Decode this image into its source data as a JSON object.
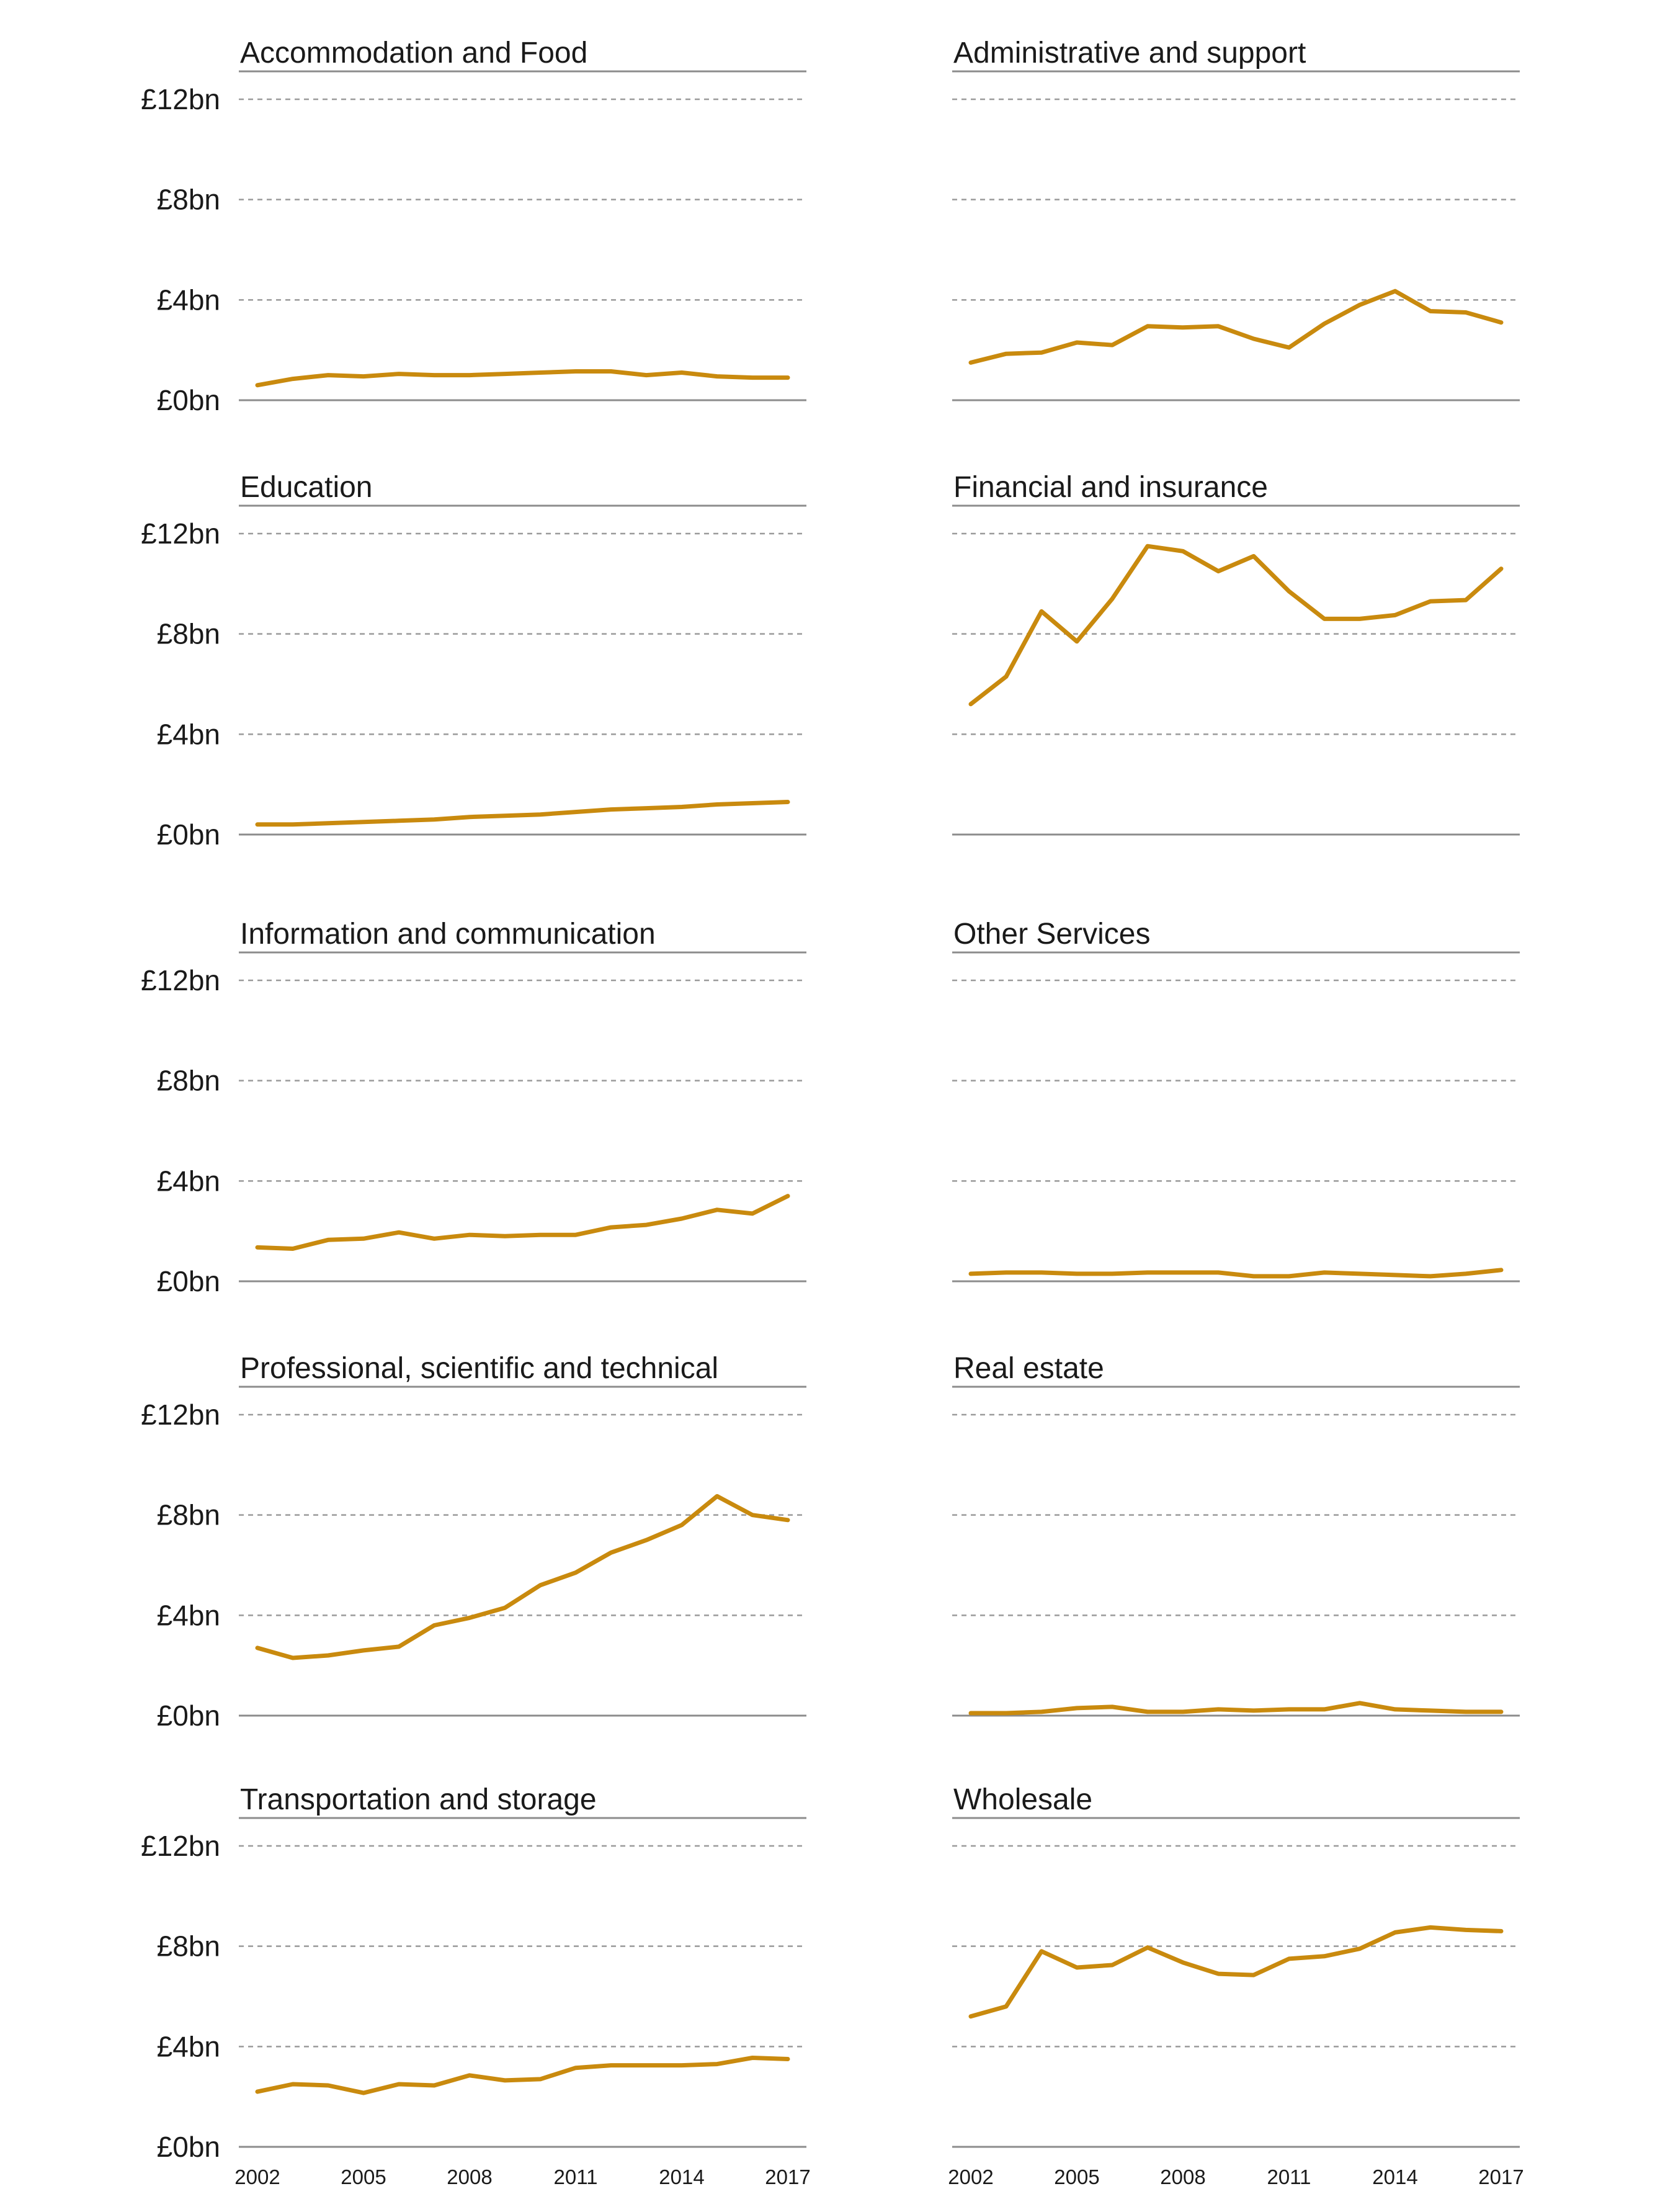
{
  "chart_data": {
    "type": "line",
    "line_color": "#c98a0e",
    "y_ticks": [
      "£0bn",
      "£4bn",
      "£8bn",
      "£12bn"
    ],
    "y_tick_values": [
      0,
      4,
      8,
      12
    ],
    "ylim": [
      0,
      12
    ],
    "x": [
      2002,
      2003,
      2004,
      2005,
      2006,
      2007,
      2008,
      2009,
      2010,
      2011,
      2012,
      2013,
      2014,
      2015,
      2016,
      2017
    ],
    "x_ticks": [
      "2002",
      "2005",
      "2008",
      "2011",
      "2014",
      "2017"
    ],
    "x_tick_values": [
      2002,
      2005,
      2008,
      2011,
      2014,
      2017
    ],
    "grid": true,
    "panels": [
      {
        "title": "Accommodation and Food",
        "values": [
          0.6,
          0.85,
          1.0,
          0.95,
          1.05,
          1.0,
          1.0,
          1.05,
          1.1,
          1.15,
          1.15,
          1.0,
          1.1,
          0.95,
          0.9,
          0.9
        ]
      },
      {
        "title": "Administrative and support",
        "values": [
          1.5,
          1.85,
          1.9,
          2.3,
          2.2,
          2.95,
          2.9,
          2.95,
          2.45,
          2.1,
          3.05,
          3.8,
          4.35,
          3.55,
          3.5,
          3.1
        ]
      },
      {
        "title": "Education",
        "values": [
          0.4,
          0.4,
          0.45,
          0.5,
          0.55,
          0.6,
          0.7,
          0.75,
          0.8,
          0.9,
          1.0,
          1.05,
          1.1,
          1.2,
          1.25,
          1.3
        ]
      },
      {
        "title": "Financial and insurance",
        "values": [
          5.2,
          6.3,
          8.9,
          7.7,
          9.4,
          11.5,
          11.3,
          10.5,
          11.1,
          9.7,
          8.6,
          8.6,
          8.75,
          9.3,
          9.35,
          10.6
        ]
      },
      {
        "title": "Information and communication",
        "values": [
          1.35,
          1.3,
          1.65,
          1.7,
          1.95,
          1.7,
          1.85,
          1.8,
          1.85,
          1.85,
          2.15,
          2.25,
          2.5,
          2.85,
          2.7,
          3.4
        ]
      },
      {
        "title": "Other Services",
        "values": [
          0.3,
          0.35,
          0.35,
          0.3,
          0.3,
          0.35,
          0.35,
          0.35,
          0.2,
          0.2,
          0.35,
          0.3,
          0.25,
          0.2,
          0.3,
          0.45
        ]
      },
      {
        "title": "Professional, scientific and technical",
        "values": [
          2.7,
          2.3,
          2.4,
          2.6,
          2.75,
          3.6,
          3.9,
          4.3,
          5.2,
          5.7,
          6.5,
          7.0,
          7.6,
          8.75,
          8.0,
          7.8
        ]
      },
      {
        "title": "Real estate",
        "values": [
          0.1,
          0.1,
          0.15,
          0.3,
          0.35,
          0.15,
          0.15,
          0.25,
          0.2,
          0.25,
          0.25,
          0.5,
          0.25,
          0.2,
          0.15,
          0.15
        ]
      },
      {
        "title": "Transportation and storage",
        "values": [
          2.2,
          2.5,
          2.45,
          2.15,
          2.5,
          2.45,
          2.85,
          2.65,
          2.7,
          3.15,
          3.25,
          3.25,
          3.25,
          3.3,
          3.55,
          3.5
        ]
      },
      {
        "title": "Wholesale",
        "values": [
          5.2,
          5.6,
          7.8,
          7.15,
          7.25,
          7.95,
          7.35,
          6.9,
          6.85,
          7.5,
          7.6,
          7.9,
          8.55,
          8.75,
          8.65,
          8.6
        ]
      }
    ]
  }
}
